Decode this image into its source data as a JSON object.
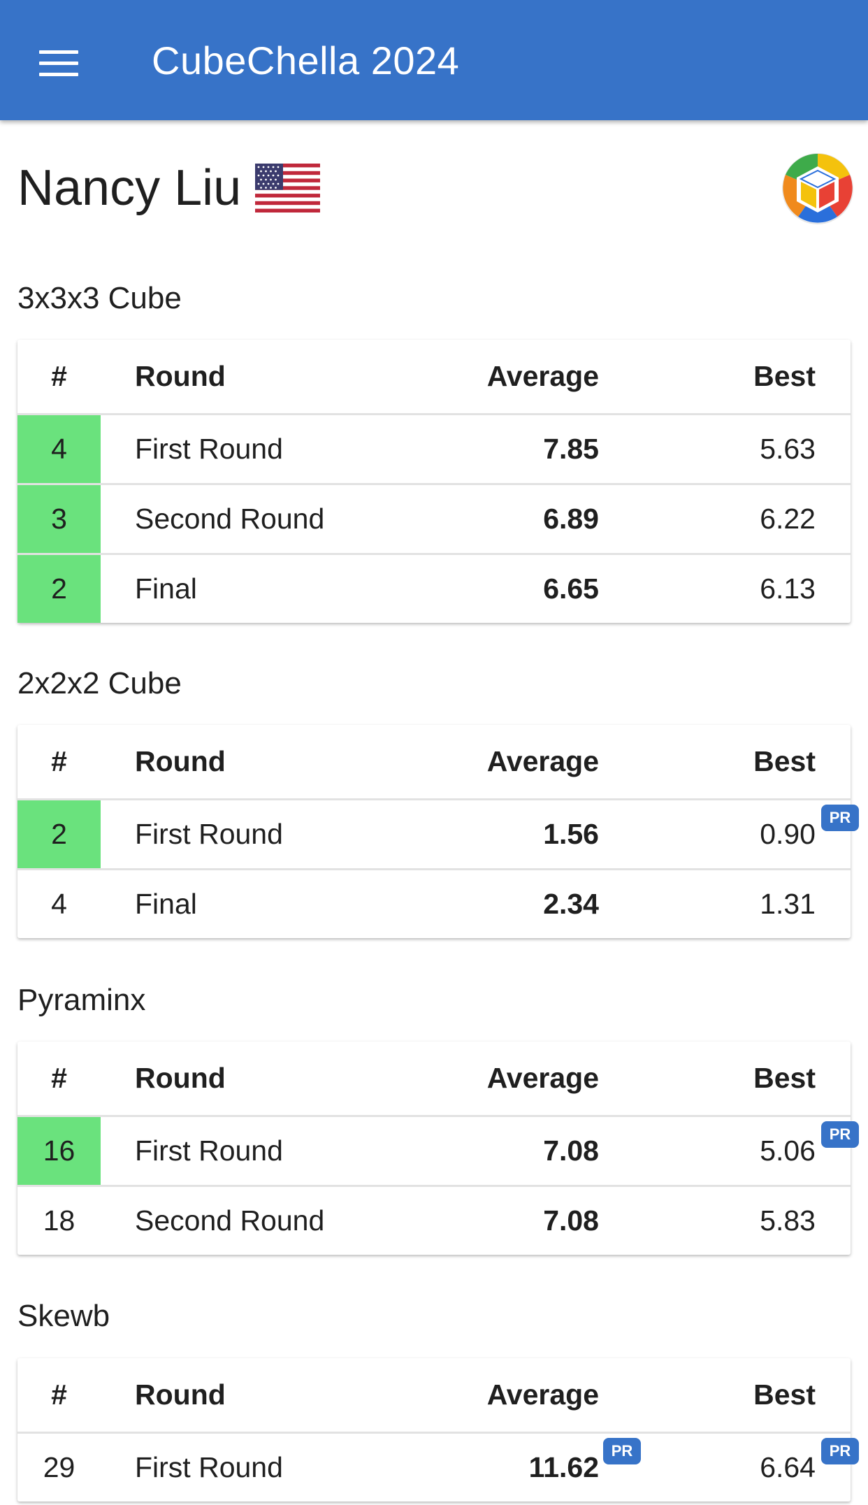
{
  "app_bar": {
    "title": "CubeChella 2024",
    "menu_icon": "hamburger-menu-icon",
    "color": "#3773c8"
  },
  "person": {
    "name": "Nancy Liu",
    "flag_icon": "us-flag-icon",
    "logo_icon": "wca-logo-icon"
  },
  "colors": {
    "advancing": "#6ae27d",
    "pr_badge": "#3773c8"
  },
  "table_headers": {
    "rank": "#",
    "round": "Round",
    "average": "Average",
    "best": "Best"
  },
  "events": [
    {
      "name": "3x3x3 Cube",
      "rows": [
        {
          "rank": "4",
          "round": "First Round",
          "average": "7.85",
          "best": "5.63",
          "advanced": true
        },
        {
          "rank": "3",
          "round": "Second Round",
          "average": "6.89",
          "best": "6.22",
          "advanced": true
        },
        {
          "rank": "2",
          "round": "Final",
          "average": "6.65",
          "best": "6.13",
          "advanced": true
        }
      ]
    },
    {
      "name": "2x2x2 Cube",
      "rows": [
        {
          "rank": "2",
          "round": "First Round",
          "average": "1.56",
          "best": "0.90",
          "advanced": true,
          "best_pr": "PR"
        },
        {
          "rank": "4",
          "round": "Final",
          "average": "2.34",
          "best": "1.31",
          "advanced": false
        }
      ]
    },
    {
      "name": "Pyraminx",
      "rows": [
        {
          "rank": "16",
          "round": "First Round",
          "average": "7.08",
          "best": "5.06",
          "advanced": true,
          "best_pr": "PR"
        },
        {
          "rank": "18",
          "round": "Second Round",
          "average": "7.08",
          "best": "5.83",
          "advanced": false
        }
      ]
    },
    {
      "name": "Skewb",
      "rows": [
        {
          "rank": "29",
          "round": "First Round",
          "average": "11.62",
          "best": "6.64",
          "advanced": false,
          "average_pr": "PR",
          "best_pr": "PR"
        }
      ]
    }
  ]
}
